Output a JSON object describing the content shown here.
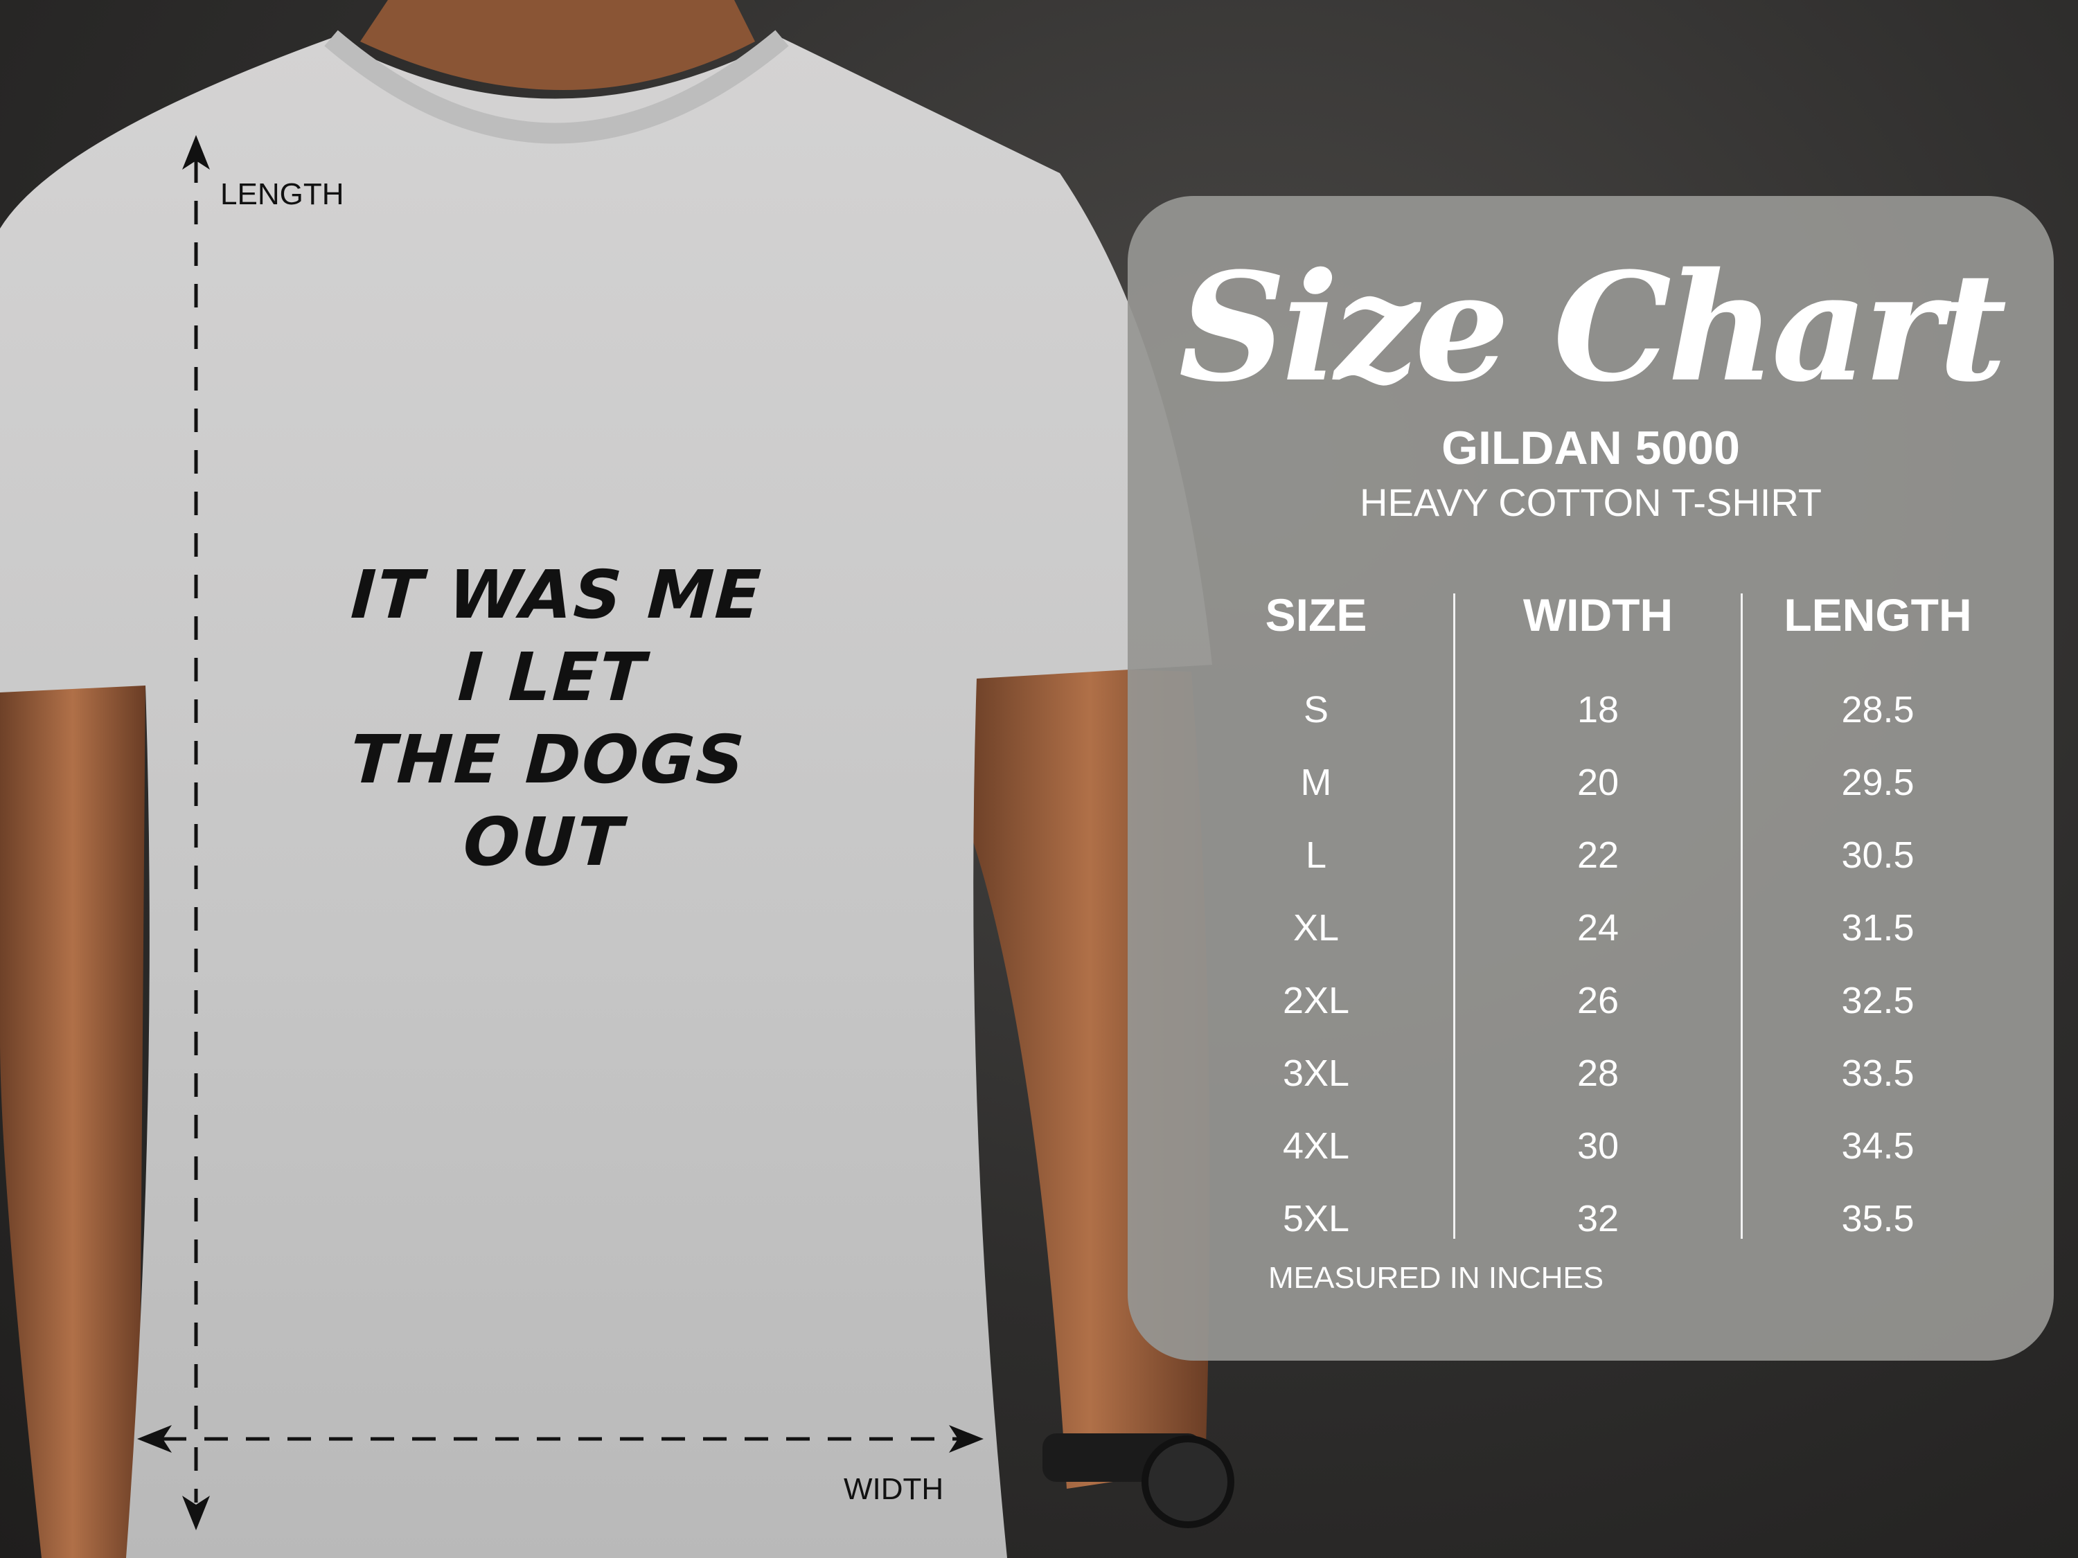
{
  "shirt": {
    "print_lines": [
      "IT WAS ME",
      "I LET",
      "THE DOGS",
      "OUT"
    ],
    "length_label": "LENGTH",
    "width_label": "WIDTH"
  },
  "size_chart": {
    "title": "Size Chart",
    "brand": "GILDAN 5000",
    "product": "HEAVY COTTON T-SHIRT",
    "headers": [
      "SIZE",
      "WIDTH",
      "LENGTH"
    ],
    "sizes": [
      "S",
      "M",
      "L",
      "XL",
      "2XL",
      "3XL",
      "4XL",
      "5XL"
    ],
    "widths": [
      "18",
      "20",
      "22",
      "24",
      "26",
      "28",
      "30",
      "32"
    ],
    "lengths": [
      "28.5",
      "29.5",
      "30.5",
      "31.5",
      "32.5",
      "33.5",
      "34.5",
      "35.5"
    ],
    "footer": "MEASURED IN INCHES"
  },
  "colors": {
    "panel": "#969692",
    "shirt": "#c9c9c9",
    "background": "#2e2d2c",
    "skin": "#a86b45"
  }
}
